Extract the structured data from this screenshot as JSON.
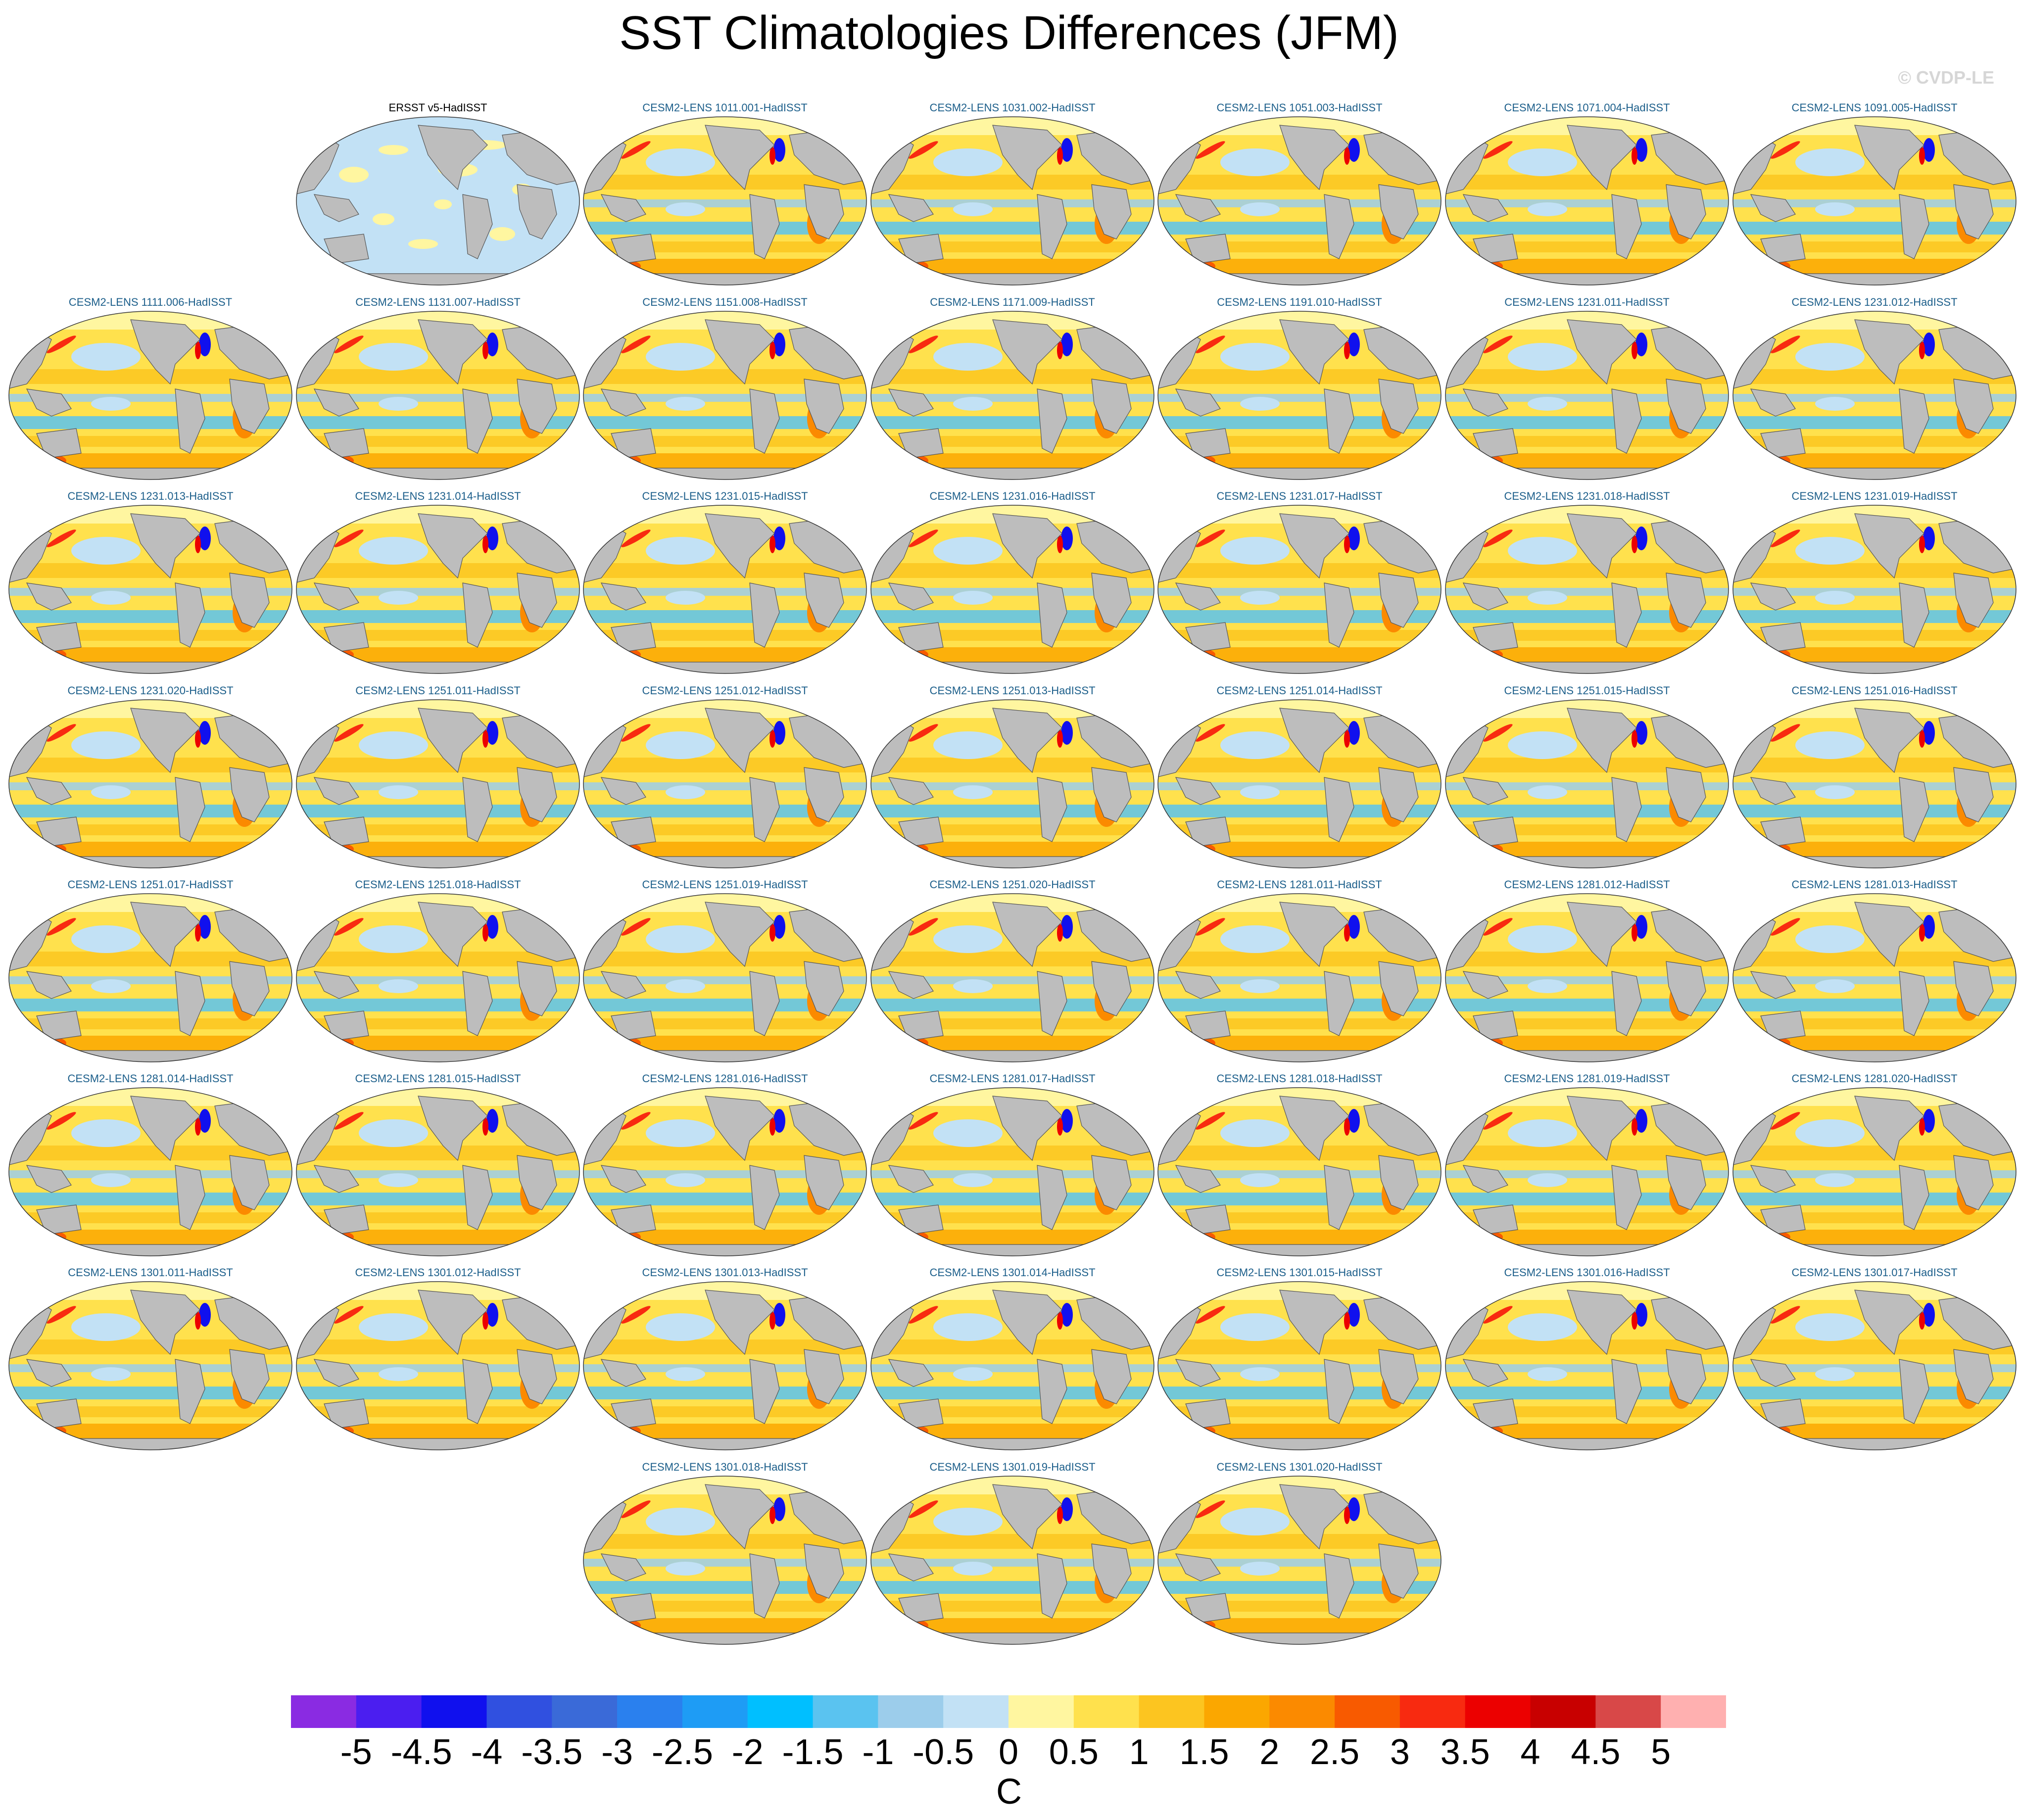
{
  "title": "SST Climatologies Differences (JFM)",
  "watermark": "© CVDP-LE",
  "colors": {
    "land": "#bdbdbd",
    "coast": "#555555",
    "panel_title_model": "#1b5e8a",
    "panel_title_obs": "#000000"
  },
  "chart_data": {
    "type": "heatmap",
    "title": "SST Climatologies Differences (JFM)",
    "projection": "global map panels",
    "panels": [
      "ERSST v5-HadISST",
      "CESM2-LENS 1011.001-HadISST",
      "CESM2-LENS 1031.002-HadISST",
      "CESM2-LENS 1051.003-HadISST",
      "CESM2-LENS 1071.004-HadISST",
      "CESM2-LENS 1091.005-HadISST",
      "CESM2-LENS 1111.006-HadISST",
      "CESM2-LENS 1131.007-HadISST",
      "CESM2-LENS 1151.008-HadISST",
      "CESM2-LENS 1171.009-HadISST",
      "CESM2-LENS 1191.010-HadISST",
      "CESM2-LENS 1231.011-HadISST",
      "CESM2-LENS 1231.012-HadISST",
      "CESM2-LENS 1231.013-HadISST",
      "CESM2-LENS 1231.014-HadISST",
      "CESM2-LENS 1231.015-HadISST",
      "CESM2-LENS 1231.016-HadISST",
      "CESM2-LENS 1231.017-HadISST",
      "CESM2-LENS 1231.018-HadISST",
      "CESM2-LENS 1231.019-HadISST",
      "CESM2-LENS 1231.020-HadISST",
      "CESM2-LENS 1251.011-HadISST",
      "CESM2-LENS 1251.012-HadISST",
      "CESM2-LENS 1251.013-HadISST",
      "CESM2-LENS 1251.014-HadISST",
      "CESM2-LENS 1251.015-HadISST",
      "CESM2-LENS 1251.016-HadISST",
      "CESM2-LENS 1251.017-HadISST",
      "CESM2-LENS 1251.018-HadISST",
      "CESM2-LENS 1251.019-HadISST",
      "CESM2-LENS 1251.020-HadISST",
      "CESM2-LENS 1281.011-HadISST",
      "CESM2-LENS 1281.012-HadISST",
      "CESM2-LENS 1281.013-HadISST",
      "CESM2-LENS 1281.014-HadISST",
      "CESM2-LENS 1281.015-HadISST",
      "CESM2-LENS 1281.016-HadISST",
      "CESM2-LENS 1281.017-HadISST",
      "CESM2-LENS 1281.018-HadISST",
      "CESM2-LENS 1281.019-HadISST",
      "CESM2-LENS 1281.020-HadISST",
      "CESM2-LENS 1301.011-HadISST",
      "CESM2-LENS 1301.012-HadISST",
      "CESM2-LENS 1301.013-HadISST",
      "CESM2-LENS 1301.014-HadISST",
      "CESM2-LENS 1301.015-HadISST",
      "CESM2-LENS 1301.016-HadISST",
      "CESM2-LENS 1301.017-HadISST",
      "CESM2-LENS 1301.018-HadISST",
      "CESM2-LENS 1301.019-HadISST",
      "CESM2-LENS 1301.020-HadISST"
    ],
    "colorbar": {
      "units": "C",
      "tick_labels": [
        "-5",
        "-4.5",
        "-4",
        "-3.5",
        "-3",
        "-2.5",
        "-2",
        "-1.5",
        "-1",
        "-0.5",
        "0",
        "0.5",
        "1",
        "1.5",
        "2",
        "2.5",
        "3",
        "3.5",
        "4",
        "4.5",
        "5"
      ],
      "colors": [
        "#8a2be2",
        "#4b1ef0",
        "#1010ee",
        "#3050e0",
        "#3a6ad8",
        "#2a80ee",
        "#1e9cf5",
        "#00bfff",
        "#5ac3f0",
        "#9ccdeb",
        "#c2e1f5",
        "#fff6a0",
        "#ffe14d",
        "#fcc520",
        "#fba700",
        "#fb8a00",
        "#f85a00",
        "#f82a10",
        "#ec0000",
        "#c80000",
        "#d84848",
        "#ffb0b0"
      ]
    }
  }
}
